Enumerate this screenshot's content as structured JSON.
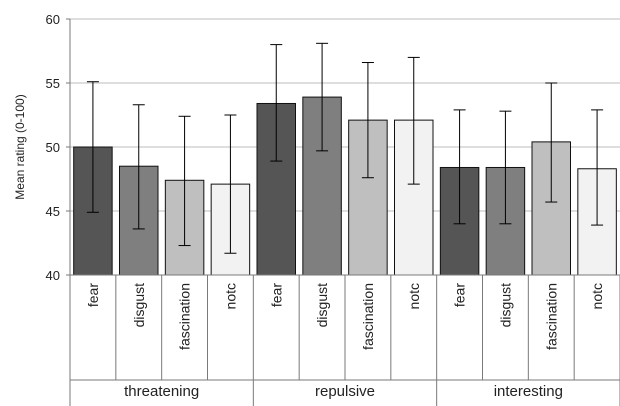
{
  "chart_data": {
    "type": "bar",
    "title": "",
    "xlabel": "",
    "ylabel": "Mean rating (0-100)",
    "ylim": [
      40,
      60
    ],
    "yticks": [
      40,
      45,
      50,
      55,
      60
    ],
    "grid": true,
    "groups": [
      "threatening",
      "repulsive",
      "interesting"
    ],
    "categories": [
      "fear",
      "disgust",
      "fascination",
      "notc"
    ],
    "colors": [
      "#555555",
      "#7f7f7f",
      "#bfbfbf",
      "#f2f2f2"
    ],
    "bars": [
      {
        "group": "threatening",
        "category": "fear",
        "value": 50.0,
        "error_low": 44.9,
        "error_high": 55.1
      },
      {
        "group": "threatening",
        "category": "disgust",
        "value": 48.5,
        "error_low": 43.6,
        "error_high": 53.3
      },
      {
        "group": "threatening",
        "category": "fascination",
        "value": 47.4,
        "error_low": 42.3,
        "error_high": 52.4
      },
      {
        "group": "threatening",
        "category": "notc",
        "value": 47.1,
        "error_low": 41.7,
        "error_high": 52.5
      },
      {
        "group": "repulsive",
        "category": "fear",
        "value": 53.4,
        "error_low": 48.9,
        "error_high": 58.0
      },
      {
        "group": "repulsive",
        "category": "disgust",
        "value": 53.9,
        "error_low": 49.7,
        "error_high": 58.1
      },
      {
        "group": "repulsive",
        "category": "fascination",
        "value": 52.1,
        "error_low": 47.6,
        "error_high": 56.6
      },
      {
        "group": "repulsive",
        "category": "notc",
        "value": 52.1,
        "error_low": 47.1,
        "error_high": 57.0
      },
      {
        "group": "interesting",
        "category": "fear",
        "value": 48.4,
        "error_low": 44.0,
        "error_high": 52.9
      },
      {
        "group": "interesting",
        "category": "disgust",
        "value": 48.4,
        "error_low": 44.0,
        "error_high": 52.8
      },
      {
        "group": "interesting",
        "category": "fascination",
        "value": 50.4,
        "error_low": 45.7,
        "error_high": 55.0
      },
      {
        "group": "interesting",
        "category": "notc",
        "value": 48.3,
        "error_low": 43.9,
        "error_high": 52.9
      }
    ]
  }
}
